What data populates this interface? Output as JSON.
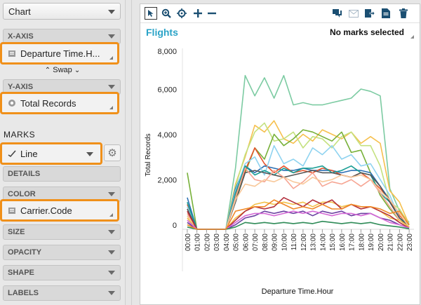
{
  "left_panel": {
    "chart_type": "Chart",
    "x_axis": {
      "label": "X-AXIS",
      "field": "Departure Time.H..."
    },
    "swap_label": "Swap",
    "y_axis": {
      "label": "Y-AXIS",
      "field": "Total Records"
    },
    "marks_label": "MARKS",
    "mark_type": "Line",
    "shelves": {
      "details": "DETAILS",
      "color": "COLOR",
      "color_field": "Carrier.Code",
      "size": "SIZE",
      "opacity": "OPACITY",
      "shape": "SHAPE",
      "labels": "LABELS"
    }
  },
  "chart_panel": {
    "title": "Flights",
    "selection_status": "No marks selected",
    "toolbar_icons": [
      "select-icon",
      "zoom-icon",
      "pan-icon",
      "add-icon",
      "remove-icon",
      "comment-icon",
      "email-icon",
      "export-icon",
      "copy-icon",
      "delete-icon"
    ]
  },
  "colors": {
    "accent_orange": "#f0901a",
    "title_blue": "#2aa3c7"
  },
  "chart_data": {
    "type": "line",
    "xlabel": "Departure Time.Hour",
    "ylabel": "Total Records",
    "ylim": [
      0,
      8000
    ],
    "y_ticks": [
      "0",
      "2,000",
      "4,000",
      "6,000",
      "8,000"
    ],
    "categories": [
      "00:00",
      "01:00",
      "02:00",
      "03:00",
      "04:00",
      "05:00",
      "06:00",
      "07:00",
      "08:00",
      "09:00",
      "10:00",
      "11:00",
      "12:00",
      "13:00",
      "14:00",
      "15:00",
      "16:00",
      "17:00",
      "18:00",
      "19:00",
      "20:00",
      "21:00",
      "22:00",
      "23:00"
    ],
    "series": [
      {
        "color": "#7ccba2",
        "values": [
          600,
          0,
          0,
          0,
          0,
          2700,
          6800,
          5900,
          6700,
          5800,
          6800,
          5500,
          5600,
          5500,
          5500,
          5600,
          5700,
          5800,
          6200,
          6100,
          5900,
          1800,
          800,
          300
        ]
      },
      {
        "color": "#f6c04e",
        "values": [
          300,
          0,
          0,
          0,
          0,
          2000,
          3200,
          4600,
          4300,
          4800,
          4000,
          3800,
          4200,
          3900,
          4400,
          4200,
          4000,
          4300,
          3800,
          4100,
          3800,
          1700,
          1200,
          200
        ]
      },
      {
        "color": "#c4e17f",
        "values": [
          200,
          0,
          0,
          0,
          0,
          1900,
          3300,
          4300,
          4700,
          3900,
          4000,
          4300,
          3600,
          4100,
          4000,
          3600,
          4100,
          4300,
          3700,
          3700,
          2800,
          1200,
          900,
          200
        ]
      },
      {
        "color": "#77b039",
        "values": [
          2500,
          0,
          0,
          0,
          0,
          1300,
          2500,
          3600,
          3100,
          4200,
          3700,
          4000,
          4400,
          4300,
          4100,
          3900,
          4300,
          3400,
          3500,
          2500,
          1500,
          900,
          400,
          100
        ]
      },
      {
        "color": "#2b6fb3",
        "values": [
          1400,
          0,
          0,
          0,
          0,
          1800,
          2800,
          2500,
          2800,
          2700,
          2600,
          2600,
          2700,
          2600,
          2600,
          2600,
          2500,
          2600,
          2600,
          2500,
          1900,
          1300,
          500,
          200
        ]
      },
      {
        "color": "#e6532c",
        "values": [
          1100,
          0,
          0,
          0,
          0,
          1500,
          2600,
          3600,
          2900,
          2500,
          2800,
          2500,
          2600,
          2500,
          2700,
          2600,
          2400,
          2300,
          2500,
          2200,
          1800,
          1300,
          600,
          200
        ]
      },
      {
        "color": "#8fd3f0",
        "values": [
          1000,
          0,
          0,
          0,
          0,
          1700,
          2900,
          3200,
          2400,
          3700,
          2900,
          3100,
          2800,
          3600,
          3300,
          3700,
          3100,
          3300,
          2800,
          2900,
          2200,
          1500,
          500,
          100
        ]
      },
      {
        "color": "#1a9e95",
        "values": [
          1200,
          0,
          0,
          0,
          0,
          1600,
          2800,
          2400,
          2600,
          2400,
          2700,
          2500,
          2700,
          2700,
          2800,
          2500,
          2600,
          2800,
          2500,
          2400,
          1600,
          1200,
          500,
          200
        ]
      },
      {
        "color": "#555555",
        "values": [
          900,
          0,
          0,
          0,
          0,
          1200,
          2500,
          2600,
          2500,
          2400,
          2300,
          2400,
          2500,
          2600,
          2500,
          2500,
          2400,
          2300,
          2500,
          2400,
          1900,
          1200,
          500,
          100
        ]
      },
      {
        "color": "#f6a593",
        "values": [
          700,
          0,
          0,
          0,
          0,
          1400,
          2700,
          2200,
          2100,
          2600,
          2300,
          1800,
          2100,
          2500,
          1900,
          2100,
          2000,
          2200,
          1900,
          2200,
          1600,
          1000,
          400,
          100
        ]
      },
      {
        "color": "#f8c89a",
        "values": [
          600,
          0,
          0,
          0,
          0,
          1300,
          2000,
          1900,
          2200,
          2100,
          2300,
          2100,
          2000,
          2300,
          2100,
          2200,
          2400,
          2300,
          2400,
          2200,
          1700,
          1300,
          700,
          100
        ]
      },
      {
        "color": "#f2c14a",
        "values": [
          500,
          0,
          0,
          0,
          0,
          500,
          800,
          1100,
          1200,
          1100,
          1200,
          1100,
          1200,
          1000,
          1200,
          1200,
          1000,
          1100,
          1000,
          1000,
          800,
          500,
          400,
          100
        ]
      },
      {
        "color": "#b22d3a",
        "values": [
          800,
          0,
          0,
          0,
          0,
          400,
          800,
          1000,
          900,
          1000,
          1400,
          1200,
          1000,
          1300,
          1100,
          1300,
          900,
          1100,
          900,
          1000,
          800,
          600,
          300,
          50
        ]
      },
      {
        "color": "#6a3fa0",
        "values": [
          300,
          0,
          0,
          0,
          0,
          200,
          500,
          600,
          800,
          700,
          800,
          700,
          800,
          600,
          800,
          700,
          800,
          600,
          700,
          700,
          500,
          400,
          200,
          50
        ]
      },
      {
        "color": "#d56ad6",
        "values": [
          400,
          0,
          0,
          0,
          0,
          300,
          600,
          700,
          700,
          600,
          700,
          800,
          700,
          800,
          700,
          600,
          700,
          700,
          600,
          700,
          500,
          300,
          200,
          50
        ]
      },
      {
        "color": "#2e8b57",
        "values": [
          100,
          0,
          0,
          0,
          0,
          100,
          300,
          250,
          300,
          250,
          300,
          250,
          300,
          250,
          350,
          300,
          250,
          300,
          250,
          300,
          200,
          150,
          100,
          20
        ]
      },
      {
        "color": "#f08a2a",
        "values": [
          200,
          0,
          0,
          0,
          0,
          800,
          900,
          1000,
          1000,
          1300,
          1100,
          900,
          1000,
          900,
          1100,
          900,
          900,
          1100,
          1000,
          1000,
          900,
          700,
          800,
          200
        ]
      }
    ]
  }
}
